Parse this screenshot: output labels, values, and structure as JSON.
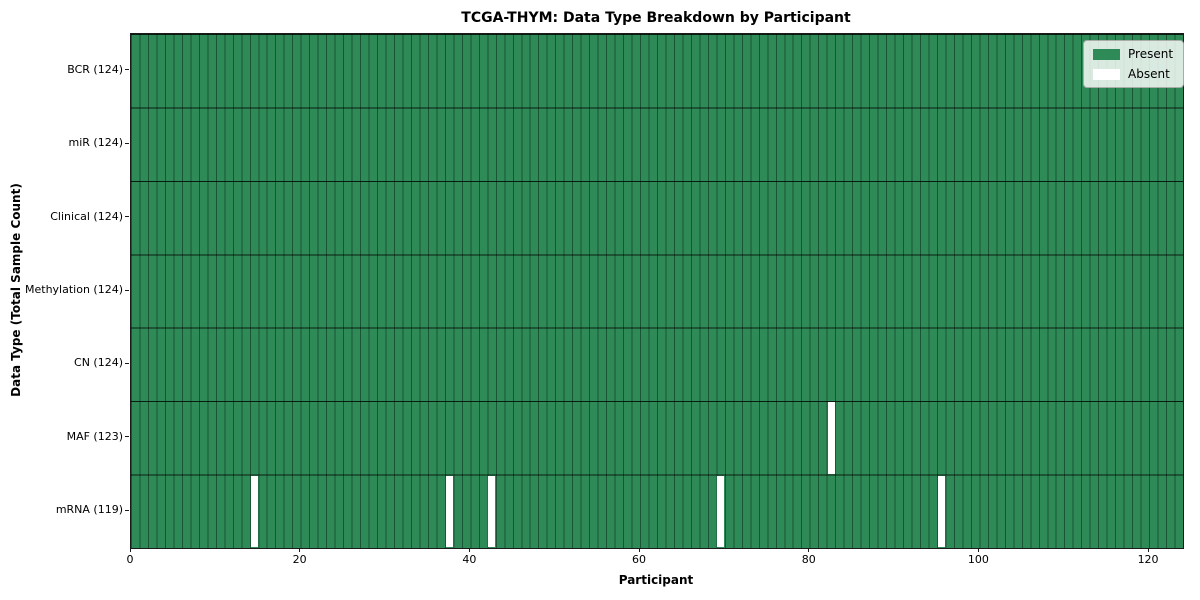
{
  "figure": {
    "title": "TCGA-THYM: Data Type Breakdown by Participant",
    "xlabel": "Participant",
    "ylabel": "Data Type (Total Sample Count)"
  },
  "chart_data": {
    "type": "heatmap",
    "title": "TCGA-THYM: Data Type Breakdown by Participant",
    "xlabel": "Participant",
    "ylabel": "Data Type (Total Sample Count)",
    "x_ticks": [
      0,
      20,
      40,
      60,
      80,
      100,
      120
    ],
    "x_range": [
      0,
      124
    ],
    "n_participants": 124,
    "grid": true,
    "legend_position": "upper-right",
    "rows": [
      {
        "label": "BCR (124)",
        "data_type": "BCR",
        "present_count": 124,
        "absent_participants": []
      },
      {
        "label": "miR (124)",
        "data_type": "miR",
        "present_count": 124,
        "absent_participants": []
      },
      {
        "label": "Clinical (124)",
        "data_type": "Clinical",
        "present_count": 124,
        "absent_participants": []
      },
      {
        "label": "Methylation (124)",
        "data_type": "Methylation",
        "present_count": 124,
        "absent_participants": []
      },
      {
        "label": "CN (124)",
        "data_type": "CN",
        "present_count": 124,
        "absent_participants": []
      },
      {
        "label": "MAF (123)",
        "data_type": "MAF",
        "present_count": 123,
        "absent_participants": [
          82
        ]
      },
      {
        "label": "mRNA (119)",
        "data_type": "mRNA",
        "present_count": 119,
        "absent_participants": [
          14,
          37,
          42,
          69,
          95
        ]
      }
    ],
    "legend": {
      "items": [
        {
          "label": "Present",
          "color": "#2e8b57"
        },
        {
          "label": "Absent",
          "color": "#ffffff"
        }
      ]
    }
  }
}
